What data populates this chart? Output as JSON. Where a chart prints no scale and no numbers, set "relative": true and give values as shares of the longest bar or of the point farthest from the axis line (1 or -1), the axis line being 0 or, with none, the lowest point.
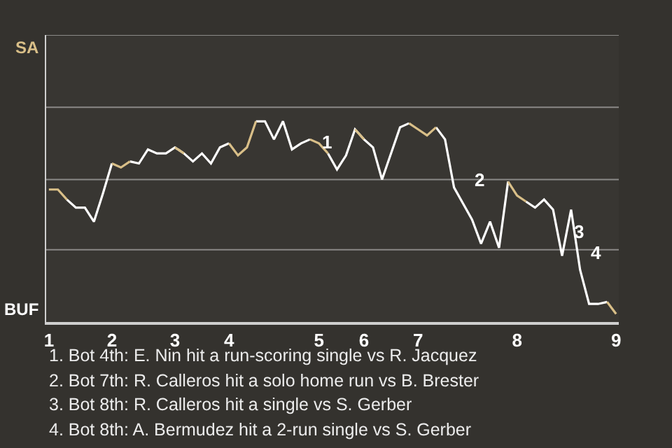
{
  "chart_data": {
    "type": "line",
    "relative": true,
    "categories": [
      "1",
      null,
      null,
      null,
      null,
      null,
      null,
      "2",
      null,
      null,
      null,
      null,
      null,
      null,
      "3",
      null,
      null,
      null,
      null,
      null,
      "4",
      null,
      null,
      null,
      null,
      null,
      null,
      null,
      null,
      null,
      "5",
      null,
      null,
      null,
      null,
      "6",
      null,
      null,
      null,
      null,
      null,
      "7",
      null,
      null,
      null,
      null,
      null,
      null,
      null,
      null,
      null,
      null,
      "8",
      null,
      null,
      null,
      null,
      null,
      null,
      null,
      null,
      null,
      null,
      "9"
    ],
    "series": [
      {
        "color": "#ffffff",
        "values": [
          null,
          null,
          0.61,
          0.57,
          0.57,
          0.5,
          0.64,
          0.79,
          null,
          0.8,
          0.79,
          0.86,
          0.84,
          0.84,
          0.87,
          0.84,
          0.8,
          0.84,
          0.79,
          0.87,
          0.89,
          null,
          null,
          1,
          1,
          0.91,
          1,
          0.86,
          0.89,
          0.91,
          null,
          0.84,
          0.76,
          0.83,
          0.96,
          0.91,
          0.87,
          0.71,
          0.84,
          0.97,
          0.99,
          null,
          null,
          0.97,
          0.91,
          0.67,
          0.59,
          0.51,
          0.39,
          0.5,
          0.37,
          0.7,
          null,
          0.6,
          0.57,
          0.61,
          0.56,
          0.33,
          0.56,
          0.26,
          0.09,
          0.09,
          0.1,
          null
        ]
      },
      {
        "color": "#d9bf88",
        "values": [
          0.66,
          0.66,
          0.61,
          null,
          null,
          null,
          null,
          0.79,
          0.77,
          0.8,
          null,
          null,
          null,
          null,
          0.87,
          0.84,
          null,
          null,
          null,
          null,
          0.89,
          0.83,
          0.87,
          1,
          null,
          null,
          null,
          null,
          null,
          0.91,
          0.89,
          0.84,
          null,
          null,
          0.96,
          0.91,
          null,
          null,
          null,
          null,
          0.99,
          0.96,
          0.93,
          0.97,
          null,
          null,
          null,
          null,
          null,
          null,
          null,
          0.7,
          0.63,
          0.6,
          null,
          null,
          null,
          null,
          null,
          null,
          null,
          null,
          0.1,
          0.04
        ]
      }
    ],
    "marker": "none",
    "line_style": "solid",
    "ref_lines": [
      {
        "axis": "y",
        "value": 0.36,
        "color": "#8a8987"
      },
      {
        "axis": "y",
        "value": 0.71,
        "color": "#8a8987"
      },
      {
        "axis": "y",
        "value": 1.07,
        "color": "#8a8987"
      },
      {
        "axis": "y",
        "value": 1.43,
        "color": "#8a8987"
      }
    ],
    "annotations": [
      "SA",
      "BUF",
      "1",
      "2",
      "3",
      "4",
      "1. Bot 4th: E. Nin hit a run-scoring single vs R. Jacquez",
      "2. Bot 7th: R. Calleros hit a solo home run vs B. Brester",
      "3. Bot 8th: R. Calleros hit a single vs S. Gerber",
      "4. Bot 8th: A. Bermudez hit a 2-run single vs S. Gerber"
    ]
  }
}
